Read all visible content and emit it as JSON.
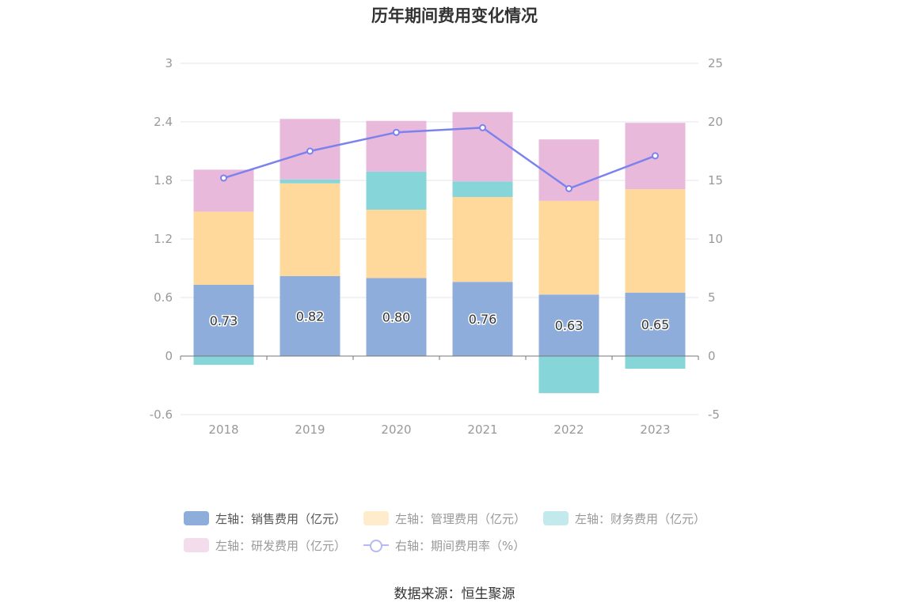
{
  "chart_data": {
    "type": "bar",
    "title": "历年期间费用变化情况",
    "categories": [
      "2018",
      "2019",
      "2020",
      "2021",
      "2022",
      "2023"
    ],
    "stacked": true,
    "y_left": {
      "min": -0.6,
      "max": 3,
      "ticks": [
        "-0.6",
        "0",
        "0.6",
        "1.2",
        "1.8",
        "2.4",
        "3"
      ]
    },
    "y_right": {
      "min": -5,
      "max": 25,
      "ticks": [
        "-5",
        "0",
        "5",
        "10",
        "15",
        "20",
        "25"
      ]
    },
    "grid": true,
    "legend_position": "bottom",
    "series": [
      {
        "name": "左轴：销售费用（亿元）",
        "axis": "left",
        "type": "bar",
        "color": "#8eaddb",
        "values": [
          0.73,
          0.82,
          0.8,
          0.76,
          0.63,
          0.65
        ],
        "labels": [
          "0.73",
          "0.82",
          "0.80",
          "0.76",
          "0.63",
          "0.65"
        ]
      },
      {
        "name": "左轴：管理费用（亿元）",
        "axis": "left",
        "type": "bar",
        "color": "#fed99b",
        "values": [
          0.75,
          0.95,
          0.7,
          0.87,
          0.96,
          1.06
        ]
      },
      {
        "name": "左轴：财务费用（亿元）",
        "axis": "left",
        "type": "bar",
        "color": "#86d5d8",
        "values": [
          -0.09,
          0.04,
          0.39,
          0.16,
          -0.38,
          -0.13
        ]
      },
      {
        "name": "左轴：研发费用（亿元）",
        "axis": "left",
        "type": "bar",
        "color": "#e8b9db",
        "values": [
          0.43,
          0.62,
          0.52,
          0.71,
          0.63,
          0.68
        ]
      },
      {
        "name": "右轴：期间费用率（%）",
        "axis": "right",
        "type": "line",
        "color": "#7b82ee",
        "values": [
          15.2,
          17.5,
          19.1,
          19.5,
          14.3,
          17.1
        ]
      }
    ]
  },
  "legend": [
    {
      "label": "左轴：销售费用（亿元）",
      "color": "#8eaddb",
      "kind": "swatch",
      "active": true
    },
    {
      "label": "左轴：管理费用（亿元）",
      "color": "#feeccc",
      "kind": "swatch",
      "active": false
    },
    {
      "label": "左轴：财务费用（亿元）",
      "color": "#c2e9eb",
      "kind": "swatch",
      "active": false
    },
    {
      "label": "左轴：研发费用（亿元）",
      "color": "#f3dcec",
      "kind": "swatch",
      "active": false
    },
    {
      "label": "右轴：期间费用率（%）",
      "color": "#b8b8f2",
      "kind": "line",
      "active": false
    }
  ],
  "source": "数据来源：恒生聚源"
}
